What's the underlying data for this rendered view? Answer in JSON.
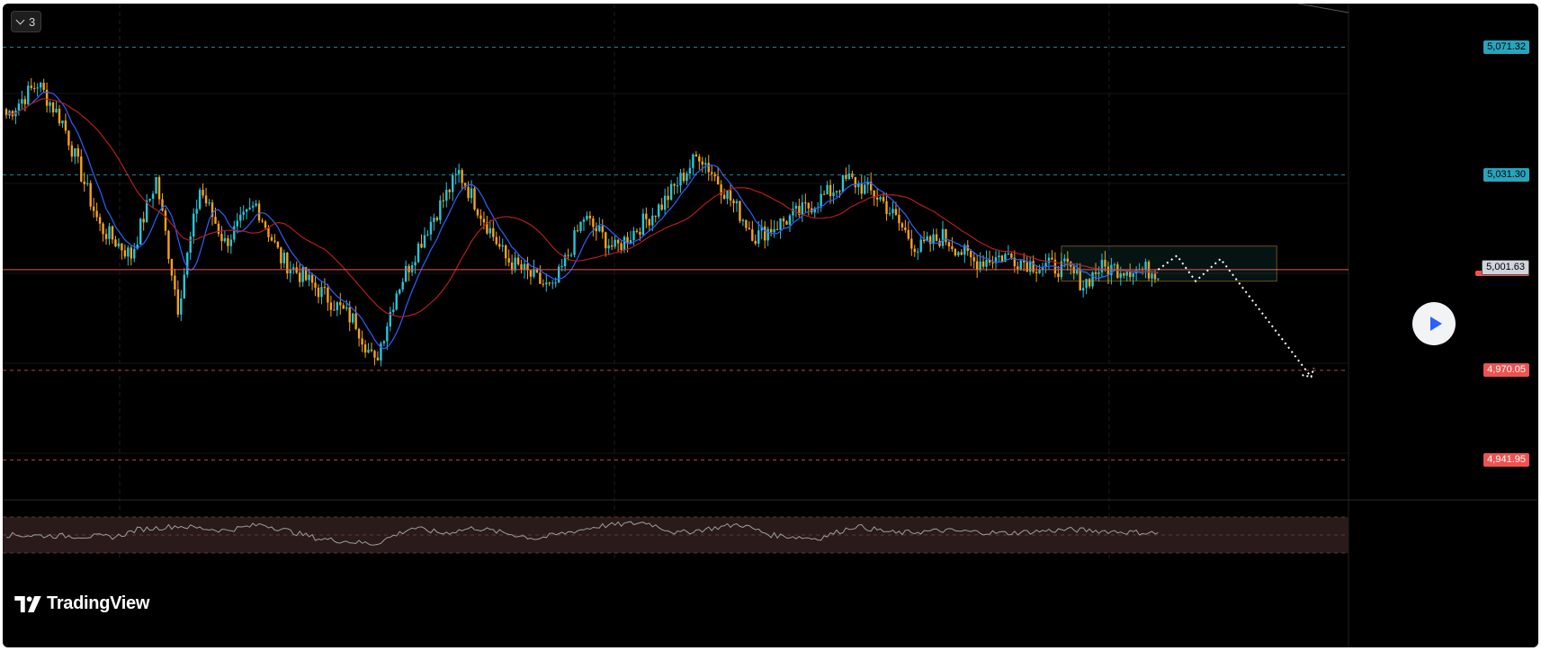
{
  "legend": {
    "count_label": "3"
  },
  "brand": {
    "name": "TradingView"
  },
  "colors": {
    "background": "#000000",
    "bull_candle": "#26c6da",
    "bear_candle": "#f7a21b",
    "ma_fast": "#2962ff",
    "ma_slow": "#b71c1c",
    "level_resistance": "#26a5bd",
    "level_support": "#ef5350",
    "rsi_line": "#9e9e9e",
    "rsi_band": "#2a1a1a"
  },
  "price_levels": [
    {
      "label": "5,071.32",
      "value": 5071.32,
      "kind": "resistance"
    },
    {
      "label": "5,031.30",
      "value": 5031.3,
      "kind": "resistance"
    },
    {
      "label": "4,970.05",
      "value": 4970.05,
      "kind": "support"
    },
    {
      "label": "4,941.95",
      "value": 4941.95,
      "kind": "support"
    }
  ],
  "current_price": {
    "label": "5,001.63",
    "value": 5001.63
  },
  "chart_data": {
    "type": "candlestick",
    "y_scale": {
      "min": 4930,
      "max": 5085
    },
    "x_scale": {
      "count": 370
    },
    "anchors": [
      [
        0,
        5050
      ],
      [
        10,
        5060
      ],
      [
        18,
        5048
      ],
      [
        30,
        5015
      ],
      [
        40,
        5006
      ],
      [
        48,
        5030
      ],
      [
        55,
        4990
      ],
      [
        62,
        5027
      ],
      [
        70,
        5010
      ],
      [
        80,
        5022
      ],
      [
        88,
        5005
      ],
      [
        98,
        4997
      ],
      [
        112,
        4985
      ],
      [
        118,
        4972
      ],
      [
        125,
        4995
      ],
      [
        135,
        5015
      ],
      [
        145,
        5032
      ],
      [
        160,
        5005
      ],
      [
        175,
        4995
      ],
      [
        185,
        5018
      ],
      [
        195,
        5008
      ],
      [
        210,
        5022
      ],
      [
        222,
        5038
      ],
      [
        240,
        5012
      ],
      [
        255,
        5020
      ],
      [
        270,
        5030
      ],
      [
        280,
        5024
      ],
      [
        292,
        5008
      ],
      [
        300,
        5012
      ],
      [
        310,
        5004
      ],
      [
        320,
        5006
      ],
      [
        330,
        5003
      ],
      [
        340,
        5002
      ],
      [
        345,
        4997
      ],
      [
        350,
        5002
      ],
      [
        360,
        5002
      ],
      [
        369,
        5001
      ]
    ],
    "rsi_anchors": [
      [
        0,
        50
      ],
      [
        35,
        48
      ],
      [
        42,
        56
      ],
      [
        55,
        60
      ],
      [
        70,
        55
      ],
      [
        82,
        62
      ],
      [
        100,
        46
      ],
      [
        118,
        40
      ],
      [
        130,
        58
      ],
      [
        140,
        52
      ],
      [
        150,
        58
      ],
      [
        170,
        46
      ],
      [
        190,
        60
      ],
      [
        205,
        64
      ],
      [
        215,
        52
      ],
      [
        235,
        62
      ],
      [
        245,
        50
      ],
      [
        260,
        46
      ],
      [
        272,
        60
      ],
      [
        285,
        52
      ],
      [
        300,
        55
      ],
      [
        320,
        52
      ],
      [
        340,
        56
      ],
      [
        369,
        52
      ]
    ],
    "projection": [
      {
        "x": 369,
        "y": 5001.6
      },
      {
        "x": 375,
        "y": 5006
      },
      {
        "x": 381,
        "y": 4998
      },
      {
        "x": 389,
        "y": 5005
      },
      {
        "x": 418,
        "y": 4968
      }
    ]
  }
}
